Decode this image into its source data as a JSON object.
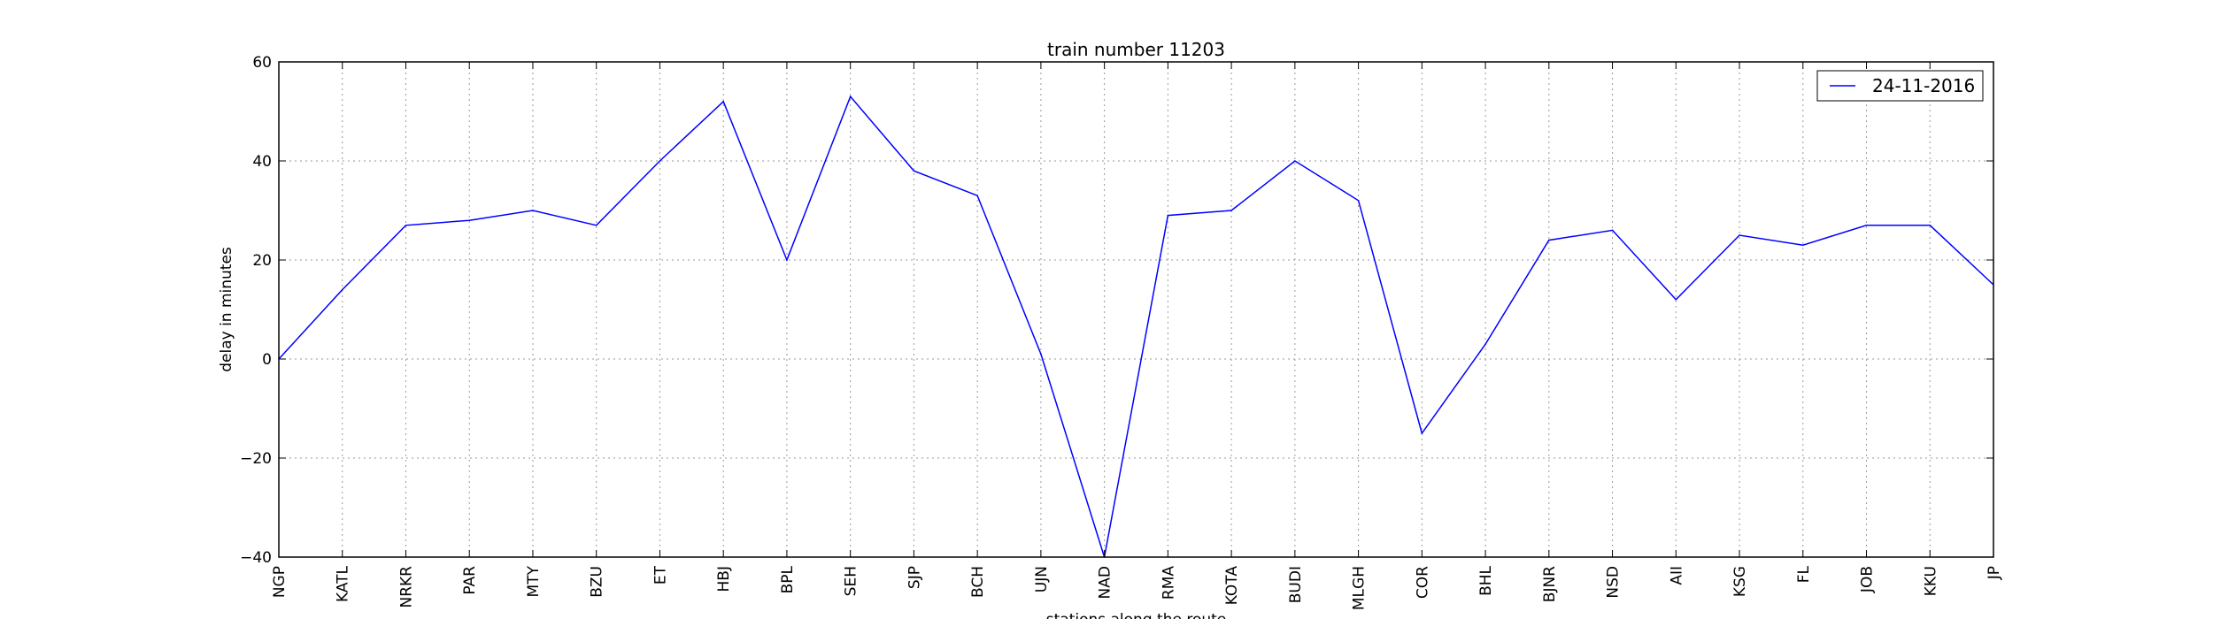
{
  "chart_data": {
    "type": "line",
    "title": "train number 11203",
    "xlabel": "stations along the route",
    "ylabel": "delay in minutes",
    "categories": [
      "NGP",
      "KATL",
      "NRKR",
      "PAR",
      "MTY",
      "BZU",
      "ET",
      "HBJ",
      "BPL",
      "SEH",
      "SJP",
      "BCH",
      "UJN",
      "NAD",
      "RMA",
      "KOTA",
      "BUDI",
      "MLGH",
      "COR",
      "BHL",
      "BJNR",
      "NSD",
      "AII",
      "KSG",
      "FL",
      "JOB",
      "KKU",
      "JP"
    ],
    "series": [
      {
        "name": "24-11-2016",
        "values": [
          0,
          14,
          27,
          28,
          30,
          27,
          40,
          52,
          20,
          53,
          38,
          33,
          1,
          -40,
          29,
          30,
          40,
          32,
          -15,
          3,
          24,
          26,
          12,
          25,
          23,
          27,
          27,
          15
        ]
      }
    ],
    "ylim": [
      -40,
      60
    ],
    "yticks": [
      "60",
      "40",
      "20",
      "0",
      "−20",
      "−40"
    ],
    "ytick_values": [
      60,
      40,
      20,
      0,
      -20,
      -40
    ],
    "grid": true,
    "legend_position": "upper-right",
    "line_color": "#0000ff"
  }
}
